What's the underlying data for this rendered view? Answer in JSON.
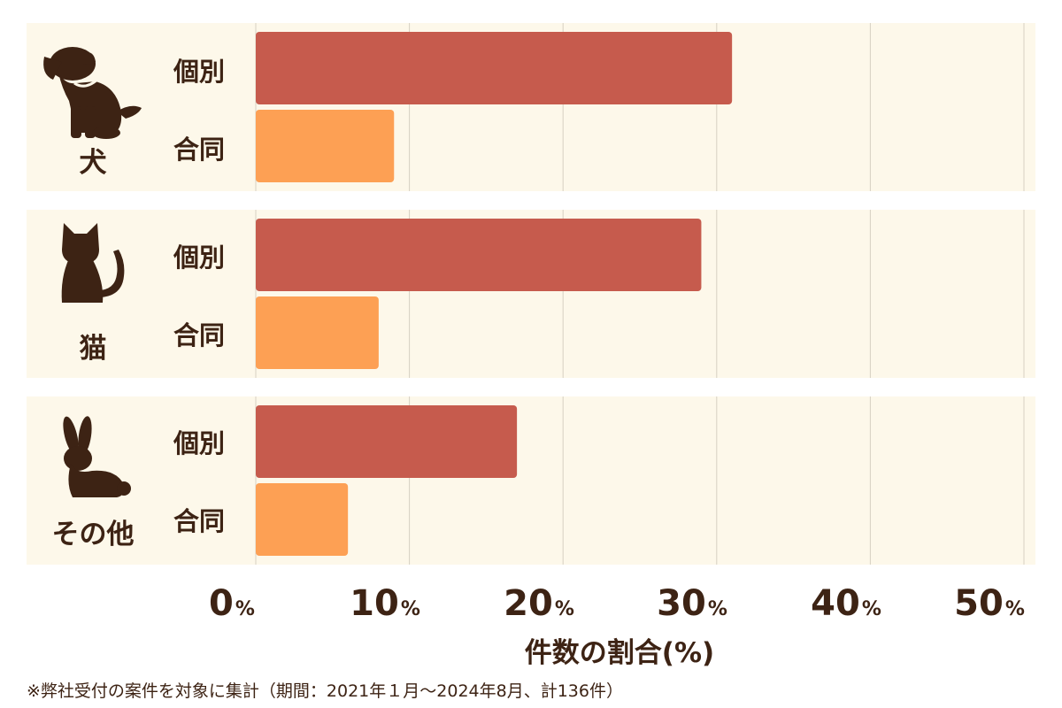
{
  "chart_data": {
    "type": "bar",
    "orientation": "horizontal",
    "groups": [
      {
        "label": "犬",
        "icon": "dog-icon",
        "bars": [
          {
            "label": "個別",
            "value": 31
          },
          {
            "label": "合同",
            "value": 9
          }
        ]
      },
      {
        "label": "猫",
        "icon": "cat-icon",
        "bars": [
          {
            "label": "個別",
            "value": 29
          },
          {
            "label": "合同",
            "value": 8
          }
        ]
      },
      {
        "label": "その他",
        "icon": "rabbit-icon",
        "bars": [
          {
            "label": "個別",
            "value": 17
          },
          {
            "label": "合同",
            "value": 6
          }
        ]
      }
    ],
    "xlim": [
      0,
      50
    ],
    "xticks": [
      0,
      10,
      20,
      30,
      40,
      50
    ],
    "tick_unit": "%",
    "xlabel": "件数の割合(%)",
    "grid": true,
    "colors": {
      "個別": "#c65b4d",
      "合同": "#fda054",
      "panel": "#fdf8ea",
      "text": "#3d2314",
      "grid": "#d6d0c2"
    }
  },
  "footnote": "※弊社受付の案件を対象に集計（期間：2021年１月〜2024年8月、計136件）"
}
